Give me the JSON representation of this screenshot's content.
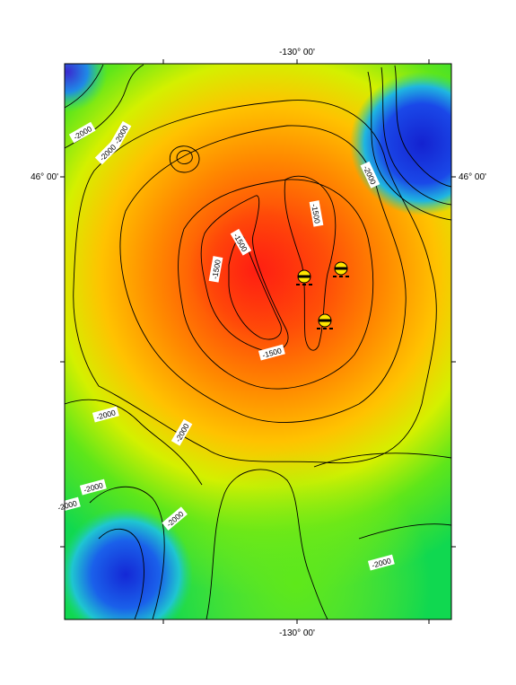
{
  "map": {
    "top_longitude_label": "-130° 00'",
    "bottom_longitude_label": "-130° 00'",
    "left_latitude_label": "46° 00'",
    "right_latitude_label": "46° 00'",
    "contour_labels": [
      "-2000",
      "-2000",
      "-2000",
      "-2000",
      "-1500",
      "-1500",
      "-1500",
      "-1500",
      "-2000",
      "-2000",
      "-2000",
      "-2000",
      "-2000",
      "-2000"
    ],
    "marker_count": 3,
    "colors": {
      "deep": "#1a2fd6",
      "mid": "#1fd93a",
      "shallow": "#ff6e00",
      "summit": "#ff2a10",
      "marker": "#ffe600"
    }
  }
}
